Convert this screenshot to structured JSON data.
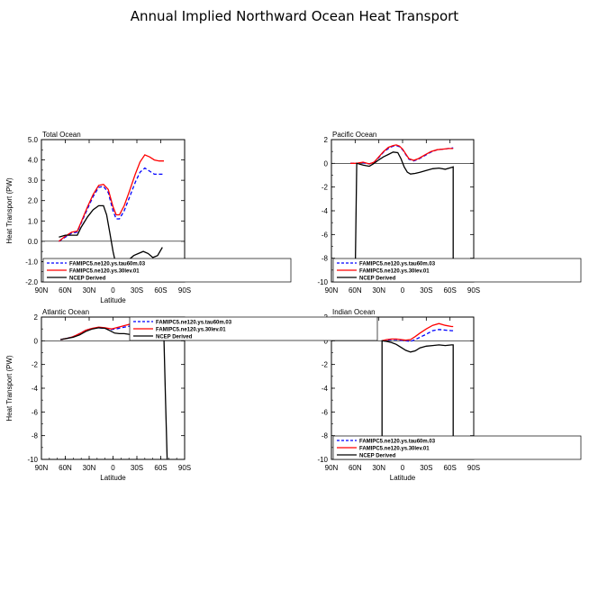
{
  "figure_title": "Annual Implied Northward Ocean Heat Transport",
  "colors": {
    "case1": "#0000ff",
    "case2": "#ff0000",
    "obs": "#000000",
    "frame": "#000000"
  },
  "chart_data": [
    {
      "type": "line",
      "title": "Total Ocean",
      "xlabel": "Latitude",
      "ylabel": "Heat Transport (PW)",
      "xlim": [
        -90,
        90
      ],
      "ylim": [
        -2.0,
        5.0
      ],
      "xticks": [
        -90,
        -60,
        -30,
        0,
        30,
        60,
        90
      ],
      "xticklabels": [
        "90N",
        "60N",
        "30N",
        "0",
        "30S",
        "60S",
        "90S"
      ],
      "yticks": [
        -2.0,
        -1.0,
        0.0,
        1.0,
        2.0,
        3.0,
        4.0,
        5.0
      ],
      "yticklabels": [
        "-2.0",
        "-1.0",
        "0.0",
        "1.0",
        "2.0",
        "3.0",
        "4.0",
        "5.0"
      ],
      "legend_position": "bottom",
      "series": [
        {
          "name": "FAMIPC5.ne120.ys.tau60m.03",
          "style": "dashed",
          "color": "#0000ff",
          "x": [
            -68,
            -60,
            -52,
            -45,
            -40,
            -32,
            -25,
            -18,
            -12,
            -6,
            0,
            4,
            8,
            14,
            20,
            28,
            34,
            40,
            46,
            52,
            58,
            64
          ],
          "y": [
            0.0,
            0.2,
            0.4,
            0.45,
            0.9,
            1.6,
            2.2,
            2.65,
            2.7,
            2.4,
            1.5,
            1.1,
            1.1,
            1.5,
            2.1,
            2.9,
            3.4,
            3.6,
            3.45,
            3.3,
            3.3,
            3.3
          ]
        },
        {
          "name": "FAMIPC5.ne120.ys.30lev.01",
          "style": "solid",
          "color": "#ff0000",
          "x": [
            -68,
            -60,
            -52,
            -45,
            -40,
            -32,
            -25,
            -18,
            -12,
            -6,
            0,
            4,
            8,
            14,
            20,
            28,
            34,
            40,
            46,
            52,
            58,
            64
          ],
          "y": [
            0.0,
            0.25,
            0.45,
            0.5,
            0.95,
            1.7,
            2.3,
            2.75,
            2.8,
            2.55,
            1.7,
            1.3,
            1.3,
            1.75,
            2.4,
            3.3,
            3.9,
            4.25,
            4.15,
            4.0,
            3.95,
            3.95
          ]
        },
        {
          "name": "NCEP Derived",
          "style": "solid",
          "color": "#000000",
          "x": [
            -68,
            -60,
            -52,
            -45,
            -40,
            -32,
            -25,
            -18,
            -12,
            -8,
            -4,
            0,
            4,
            8,
            14,
            20,
            26,
            32,
            38,
            44,
            50,
            56,
            62
          ],
          "y": [
            0.2,
            0.3,
            0.3,
            0.3,
            0.7,
            1.2,
            1.55,
            1.75,
            1.75,
            1.3,
            0.4,
            -0.5,
            -1.2,
            -1.3,
            -1.2,
            -0.9,
            -0.7,
            -0.6,
            -0.5,
            -0.6,
            -0.8,
            -0.7,
            -0.3
          ]
        }
      ]
    },
    {
      "type": "line",
      "title": "Pacific Ocean",
      "xlabel": "",
      "ylabel": "",
      "xlim": [
        -90,
        90
      ],
      "ylim": [
        -10,
        2
      ],
      "xticks": [
        -90,
        -60,
        -30,
        0,
        30,
        60,
        90
      ],
      "xticklabels": [
        "90N",
        "60N",
        "30N",
        "0",
        "30S",
        "60S",
        "90S"
      ],
      "yticks": [
        -10,
        -8,
        -6,
        -4,
        -2,
        0,
        2
      ],
      "yticklabels": [
        "-10",
        "-8",
        "-6",
        "-4",
        "-2",
        "0",
        "2"
      ],
      "legend_position": "bottom",
      "series": [
        {
          "name": "FAMIPC5.ne120.ys.tau60m.03",
          "style": "dashed",
          "color": "#0000ff",
          "x": [
            -66,
            -58,
            -50,
            -42,
            -36,
            -30,
            -24,
            -18,
            -12,
            -8,
            -4,
            0,
            4,
            8,
            14,
            20,
            28,
            36,
            44,
            52,
            58,
            64
          ],
          "y": [
            0.0,
            0.0,
            0.05,
            -0.05,
            0.1,
            0.5,
            0.95,
            1.25,
            1.45,
            1.5,
            1.4,
            1.15,
            0.75,
            0.35,
            0.2,
            0.35,
            0.65,
            0.95,
            1.15,
            1.2,
            1.25,
            1.3
          ]
        },
        {
          "name": "FAMIPC5.ne120.ys.30lev.01",
          "style": "solid",
          "color": "#ff0000",
          "x": [
            -66,
            -58,
            -50,
            -42,
            -36,
            -30,
            -24,
            -18,
            -12,
            -8,
            -4,
            0,
            4,
            8,
            14,
            20,
            28,
            36,
            44,
            52,
            58,
            64
          ],
          "y": [
            0.0,
            0.0,
            0.1,
            -0.05,
            0.1,
            0.55,
            1.0,
            1.35,
            1.5,
            1.55,
            1.45,
            1.2,
            0.8,
            0.4,
            0.25,
            0.4,
            0.7,
            1.0,
            1.15,
            1.2,
            1.25,
            1.25
          ]
        },
        {
          "name": "NCEP Derived",
          "style": "solid",
          "color": "#000000",
          "x": [
            -60,
            -58,
            -50,
            -42,
            -36,
            -30,
            -24,
            -18,
            -12,
            -6,
            -2,
            2,
            6,
            10,
            16,
            22,
            30,
            38,
            46,
            54,
            62,
            64,
            64
          ],
          "y": [
            -10,
            0.0,
            -0.15,
            -0.25,
            0.0,
            0.3,
            0.55,
            0.75,
            0.95,
            0.9,
            0.4,
            -0.3,
            -0.75,
            -0.9,
            -0.85,
            -0.75,
            -0.6,
            -0.45,
            -0.4,
            -0.5,
            -0.35,
            -0.3,
            -10
          ]
        }
      ]
    },
    {
      "type": "line",
      "title": "Atlantic Ocean",
      "xlabel": "Latitude",
      "ylabel": "Heat Transport (PW)",
      "xlim": [
        -90,
        90
      ],
      "ylim": [
        -10,
        2
      ],
      "xticks": [
        -90,
        -60,
        -30,
        0,
        30,
        60,
        90
      ],
      "xticklabels": [
        "90N",
        "60N",
        "30N",
        "0",
        "30S",
        "60S",
        "90S"
      ],
      "yticks": [
        -10,
        -8,
        -6,
        -4,
        -2,
        0,
        2
      ],
      "yticklabels": [
        "-10",
        "-8",
        "-6",
        "-4",
        "-2",
        "0",
        "2"
      ],
      "legend_position": "top-right",
      "series": [
        {
          "name": "FAMIPC5.ne120.ys.tau60m.03",
          "style": "dashed",
          "color": "#0000ff",
          "x": [
            -66,
            -58,
            -50,
            -42,
            -34,
            -26,
            -18,
            -10,
            -2,
            4,
            10,
            18,
            26,
            34,
            42,
            50,
            58,
            64
          ],
          "y": [
            0.1,
            0.2,
            0.35,
            0.6,
            0.9,
            1.05,
            1.1,
            1.05,
            0.95,
            1.0,
            1.1,
            1.2,
            1.3,
            1.35,
            1.35,
            1.3,
            1.2,
            1.2
          ]
        },
        {
          "name": "FAMIPC5.ne120.ys.30lev.01",
          "style": "solid",
          "color": "#ff0000",
          "x": [
            -66,
            -58,
            -50,
            -42,
            -34,
            -26,
            -18,
            -10,
            -2,
            4,
            10,
            18,
            26,
            34,
            42,
            50,
            58,
            64
          ],
          "y": [
            0.1,
            0.2,
            0.35,
            0.6,
            0.9,
            1.05,
            1.15,
            1.1,
            1.0,
            1.1,
            1.2,
            1.35,
            1.5,
            1.55,
            1.5,
            1.4,
            1.35,
            1.35
          ]
        },
        {
          "name": "NCEP Derived",
          "style": "solid",
          "color": "#000000",
          "x": [
            -66,
            -58,
            -50,
            -42,
            -34,
            -26,
            -18,
            -10,
            -4,
            2,
            8,
            14,
            20,
            28,
            36,
            44,
            52,
            58,
            64,
            66,
            68
          ],
          "y": [
            0.1,
            0.2,
            0.3,
            0.5,
            0.8,
            1.0,
            1.1,
            1.05,
            0.85,
            0.65,
            0.6,
            0.6,
            0.55,
            0.5,
            0.45,
            0.4,
            0.35,
            0.4,
            0.3,
            -5,
            -10
          ]
        }
      ]
    },
    {
      "type": "line",
      "title": "Indian Ocean",
      "xlabel": "Latitude",
      "ylabel": "",
      "xlim": [
        -90,
        90
      ],
      "ylim": [
        -10,
        2
      ],
      "xticks": [
        -90,
        -60,
        -30,
        0,
        30,
        60,
        90
      ],
      "xticklabels": [
        "90N",
        "60N",
        "30N",
        "0",
        "30S",
        "60S",
        "90S"
      ],
      "yticks": [
        -10,
        -8,
        -6,
        -4,
        -2,
        0,
        2
      ],
      "yticklabels": [
        "-10",
        "-8",
        "-6",
        "-4",
        "-2",
        "0",
        "2"
      ],
      "legend_position": "bottom",
      "series": [
        {
          "name": "FAMIPC5.ne120.ys.tau60m.03",
          "style": "dashed",
          "color": "#0000ff",
          "x": [
            -26,
            -20,
            -14,
            -8,
            -2,
            4,
            10,
            16,
            22,
            30,
            38,
            46,
            54,
            62,
            64
          ],
          "y": [
            0.0,
            0.05,
            0.1,
            0.1,
            0.05,
            0.0,
            -0.05,
            0.1,
            0.3,
            0.55,
            0.85,
            0.95,
            0.9,
            0.85,
            0.85
          ]
        },
        {
          "name": "FAMIPC5.ne120.ys.30lev.01",
          "style": "solid",
          "color": "#ff0000",
          "x": [
            -26,
            -20,
            -14,
            -8,
            -2,
            4,
            10,
            16,
            22,
            30,
            38,
            46,
            54,
            62,
            64
          ],
          "y": [
            0.0,
            0.1,
            0.15,
            0.15,
            0.1,
            0.05,
            0.1,
            0.35,
            0.65,
            1.0,
            1.3,
            1.45,
            1.3,
            1.2,
            1.2
          ]
        },
        {
          "name": "NCEP Derived",
          "style": "solid",
          "color": "#000000",
          "x": [
            -26,
            -26,
            -20,
            -14,
            -8,
            -2,
            4,
            10,
            16,
            22,
            30,
            38,
            46,
            54,
            62,
            64,
            64
          ],
          "y": [
            -10,
            0.0,
            -0.05,
            -0.15,
            -0.3,
            -0.55,
            -0.8,
            -0.95,
            -0.85,
            -0.6,
            -0.45,
            -0.4,
            -0.35,
            -0.4,
            -0.35,
            -0.35,
            -10
          ]
        }
      ]
    }
  ]
}
